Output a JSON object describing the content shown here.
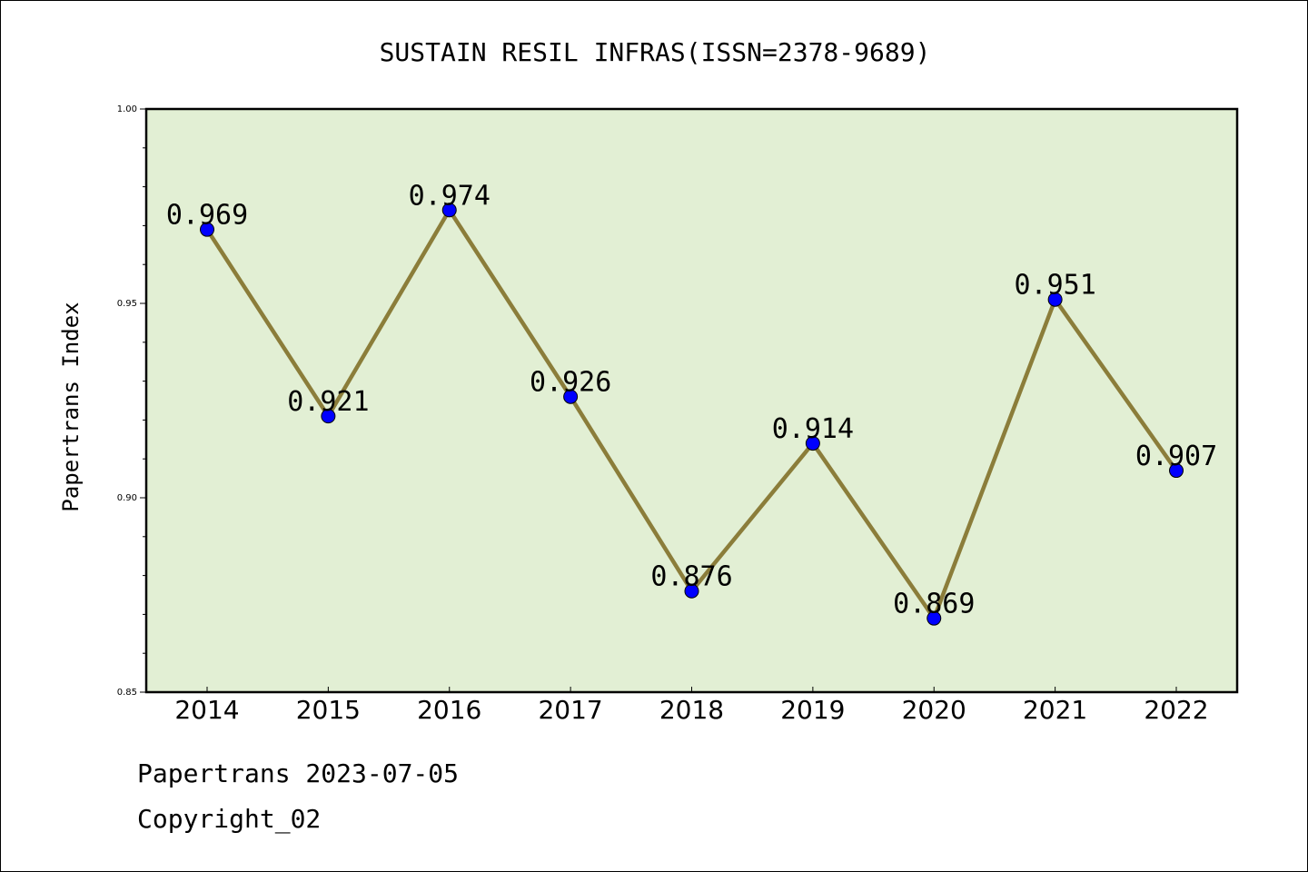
{
  "chart_data": {
    "type": "line",
    "title": "SUSTAIN RESIL INFRAS(ISSN=2378-9689)",
    "xlabel": "",
    "ylabel": "Papertrans Index",
    "categories": [
      "2014",
      "2015",
      "2016",
      "2017",
      "2018",
      "2019",
      "2020",
      "2021",
      "2022"
    ],
    "series": [
      {
        "values": [
          0.969,
          0.921,
          0.974,
          0.926,
          0.876,
          0.914,
          0.869,
          0.951,
          0.907
        ],
        "labels": [
          "0.969",
          "0.921",
          "0.974",
          "0.926",
          "0.876",
          "0.914",
          "0.869",
          "0.951",
          "0.907"
        ],
        "line_color": "#8b7d3a",
        "marker_color": "#0000ff"
      }
    ],
    "ylim": [
      0.85,
      1.0
    ],
    "yticks": [
      "0.85",
      "0.90",
      "0.95",
      "1.00"
    ],
    "grid": false,
    "plot_background": "#e2efd4"
  },
  "footer": {
    "line1": "Papertrans 2023-07-05",
    "line2": "Copyright_02"
  }
}
